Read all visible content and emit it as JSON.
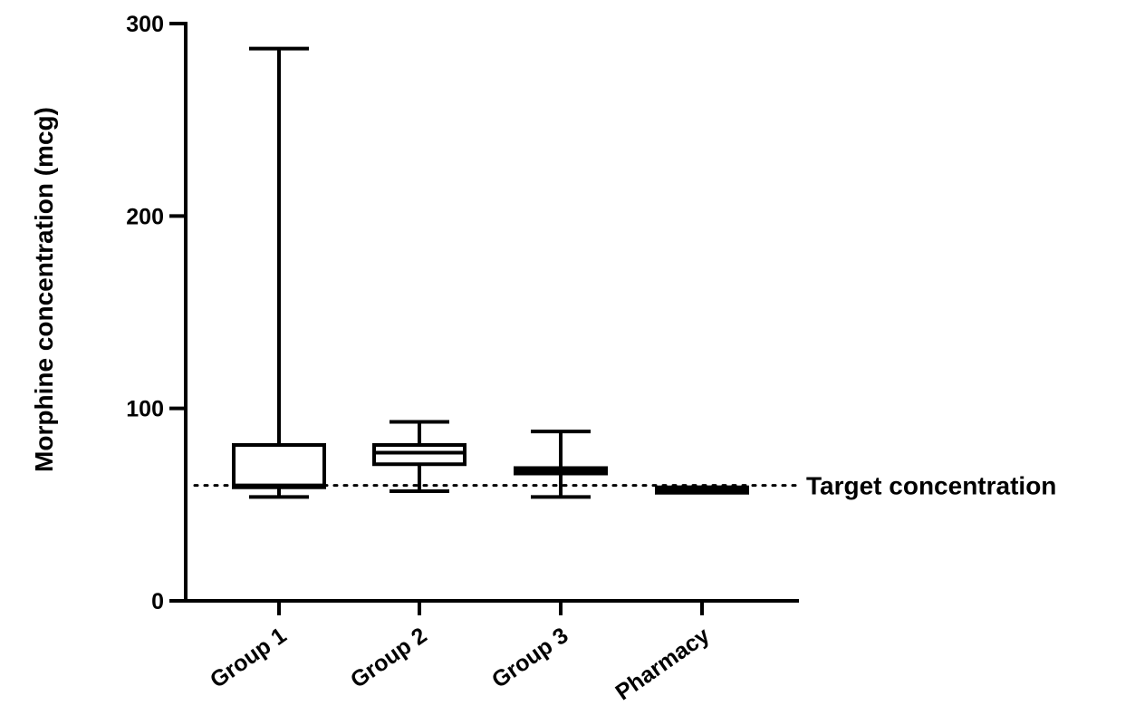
{
  "chart_data": {
    "type": "box",
    "ylabel": "Morphine concentration (mcg)",
    "xlabel": "",
    "ylim": [
      0,
      300
    ],
    "yticks": [
      0,
      100,
      200,
      300
    ],
    "categories": [
      "Group 1",
      "Group 2",
      "Group 3",
      "Pharmacy"
    ],
    "boxes": [
      {
        "name": "Group 1",
        "min": 54,
        "q1": 59,
        "median": 60,
        "q3": 81,
        "max": 287
      },
      {
        "name": "Group 2",
        "min": 57,
        "q1": 71,
        "median": 77,
        "q3": 81,
        "max": 93
      },
      {
        "name": "Group 3",
        "min": 54,
        "q1": 67,
        "median": 68,
        "q3": 69,
        "max": 88
      },
      {
        "name": "Pharmacy",
        "min": 57,
        "q1": 57,
        "median": 58,
        "q3": 59,
        "max": 59
      }
    ],
    "reference_line": {
      "value": 60,
      "label": "Target concentration",
      "style": "dotted"
    },
    "grid": false
  }
}
